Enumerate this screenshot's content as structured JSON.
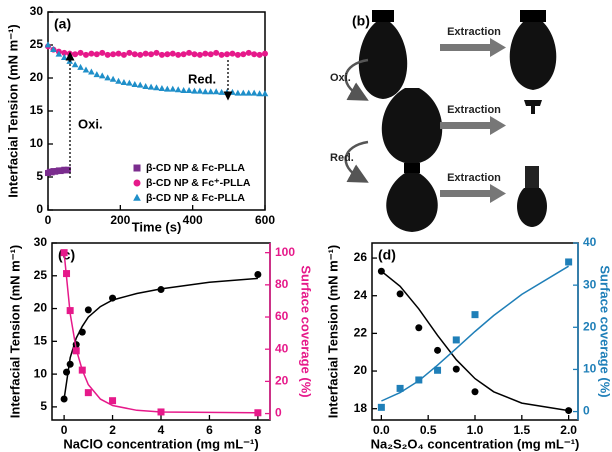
{
  "chart_data": [
    {
      "type": "scatter",
      "panel_label": "(a)",
      "x_label": "Time (s)",
      "y_label": "Interfacial Tension (mN m⁻¹)",
      "xlim": [
        0,
        600
      ],
      "ylim": [
        0,
        30
      ],
      "xticks": [
        0,
        200,
        400,
        600
      ],
      "yticks": [
        0,
        5,
        10,
        15,
        20,
        25,
        30
      ],
      "annotations": [
        "Oxi.",
        "Red."
      ],
      "legend": "lower right",
      "series": [
        {
          "name": "β-CD NP & Fc-PLLA",
          "color": "#7b2d8e",
          "marker": "square",
          "x": [
            0,
            5,
            10,
            15,
            20,
            25,
            30,
            35,
            40,
            45,
            50,
            55
          ],
          "values": [
            5.6,
            5.8,
            5.7,
            5.9,
            5.8,
            5.9,
            6.0,
            5.9,
            6.0,
            6.1,
            6.0,
            6.1
          ]
        },
        {
          "name": "β-CD NP & Fc⁺-PLLA",
          "color": "#e6198a",
          "marker": "circle",
          "x": [
            0,
            15,
            30,
            45,
            60,
            75,
            90,
            105,
            120,
            135,
            150,
            165,
            180,
            195,
            210,
            225,
            240,
            255,
            270,
            285,
            300,
            315,
            330,
            345,
            360,
            375,
            390,
            405,
            420,
            435,
            450,
            465,
            480,
            495,
            510,
            525,
            540,
            555,
            570,
            585,
            600
          ],
          "values": [
            24.8,
            24.3,
            24.0,
            23.8,
            23.7,
            23.6,
            23.8,
            23.5,
            23.7,
            23.6,
            23.8,
            23.5,
            23.6,
            23.7,
            23.5,
            23.8,
            23.6,
            23.5,
            23.7,
            23.6,
            23.8,
            23.5,
            23.6,
            23.7,
            23.5,
            23.6,
            23.8,
            23.6,
            23.5,
            23.7,
            23.6,
            23.8,
            23.5,
            23.6,
            23.7,
            23.5,
            23.6,
            23.8,
            23.6,
            23.5,
            23.7
          ]
        },
        {
          "name": "β-CD NP & Fc-PLLA",
          "color": "#1f8fc9",
          "marker": "triangle",
          "x": [
            0,
            15,
            30,
            45,
            60,
            75,
            90,
            105,
            120,
            135,
            150,
            165,
            180,
            195,
            210,
            225,
            240,
            255,
            270,
            285,
            300,
            315,
            330,
            345,
            360,
            375,
            390,
            405,
            420,
            435,
            450,
            465,
            480,
            495,
            510,
            525,
            540,
            555,
            570,
            585,
            600
          ],
          "values": [
            25.0,
            24.3,
            23.6,
            23.1,
            22.5,
            22.0,
            21.6,
            21.2,
            20.9,
            20.5,
            20.3,
            20.0,
            19.8,
            19.5,
            19.3,
            19.2,
            19.0,
            18.9,
            18.7,
            18.6,
            18.5,
            18.4,
            18.3,
            18.3,
            18.2,
            18.1,
            18.1,
            18.0,
            18.0,
            17.9,
            17.9,
            17.9,
            17.8,
            17.8,
            17.8,
            17.7,
            17.7,
            17.7,
            17.7,
            17.6,
            17.6
          ]
        }
      ]
    },
    {
      "type": "scatter",
      "panel_label": "(c)",
      "x_label": "NaClO concentration (mg mL⁻¹)",
      "y_label": "Interfacial Tension (mN m⁻¹)",
      "y2_label": "Surface coverage (%)",
      "y2_color": "#e6198a",
      "xlim": [
        -0.5,
        8.5
      ],
      "ylim": [
        3,
        30
      ],
      "y2lim": [
        -4,
        106
      ],
      "xticks": [
        0,
        2,
        4,
        6,
        8
      ],
      "yticks": [
        5,
        10,
        15,
        20,
        25,
        30
      ],
      "y2ticks": [
        0,
        20,
        40,
        60,
        80,
        100
      ],
      "series": [
        {
          "color": "#000000",
          "marker": "circle",
          "x": [
            0,
            0.1,
            0.25,
            0.5,
            0.75,
            1,
            2,
            4,
            8
          ],
          "values": [
            6.2,
            10.3,
            11.5,
            14.5,
            16.4,
            19.8,
            21.6,
            22.9,
            25.2
          ]
        },
        {
          "color": "#000000",
          "marker": "line",
          "x": [
            0,
            0.25,
            0.5,
            0.75,
            1,
            1.5,
            2,
            3,
            4,
            6,
            8
          ],
          "values": [
            6.2,
            12.5,
            15.5,
            17.3,
            18.7,
            20.3,
            21.3,
            22.3,
            23.0,
            24.0,
            24.6
          ]
        },
        {
          "color": "#e6198a",
          "marker": "square",
          "axis": "y2",
          "x": [
            0,
            0.1,
            0.25,
            0.5,
            0.75,
            1,
            2,
            4,
            8
          ],
          "values": [
            100,
            87,
            64,
            39,
            27,
            13,
            8,
            1,
            0.5
          ]
        },
        {
          "color": "#e6198a",
          "marker": "line",
          "axis": "y2",
          "x": [
            0,
            0.25,
            0.5,
            0.75,
            1,
            1.5,
            2,
            3,
            4,
            8
          ],
          "values": [
            100,
            62,
            40,
            27,
            18,
            9,
            5,
            2,
            1,
            0.5
          ]
        }
      ]
    },
    {
      "type": "scatter",
      "panel_label": "(d)",
      "x_label": "Na₂S₂O₄ concentration (mg mL⁻¹)",
      "y_label": "Interfacial Tension (mN m⁻¹)",
      "y2_label": "Surface coverage (%)",
      "y2_color": "#1f7fb8",
      "xlim": [
        -0.1,
        2.1
      ],
      "ylim": [
        17.4,
        26.8
      ],
      "y2lim": [
        -2,
        40
      ],
      "xticks": [
        {
          "value": 0,
          "label": "0.0"
        },
        0.5,
        {
          "value": 1,
          "label": "1.0"
        },
        1.5,
        {
          "value": 2,
          "label": "2.0"
        }
      ],
      "yticks": [
        18,
        20,
        22,
        24,
        26
      ],
      "y2ticks": [
        0,
        10,
        20,
        30,
        40
      ],
      "series": [
        {
          "color": "#000000",
          "marker": "circle",
          "x": [
            0,
            0.2,
            0.4,
            0.6,
            0.8,
            1.0,
            2.0
          ],
          "values": [
            25.3,
            24.1,
            22.3,
            21.1,
            20.1,
            18.9,
            17.9
          ]
        },
        {
          "color": "#000000",
          "marker": "line",
          "x": [
            0,
            0.2,
            0.4,
            0.6,
            0.8,
            1.0,
            1.2,
            1.5,
            2.0
          ],
          "values": [
            25.3,
            24.5,
            23.3,
            21.9,
            20.6,
            19.6,
            18.9,
            18.3,
            17.9
          ]
        },
        {
          "color": "#1f7fb8",
          "marker": "square",
          "axis": "y2",
          "x": [
            0,
            0.2,
            0.4,
            0.6,
            0.8,
            1.0,
            2.0
          ],
          "values": [
            1,
            5.5,
            7.5,
            9.8,
            17,
            23,
            35.5
          ]
        },
        {
          "color": "#1f7fb8",
          "marker": "line",
          "axis": "y2",
          "x": [
            0,
            0.2,
            0.4,
            0.6,
            0.8,
            1.0,
            1.2,
            1.5,
            2.0
          ],
          "values": [
            2.5,
            4.5,
            7.3,
            11,
            15,
            19,
            22.8,
            27.8,
            34.5
          ]
        }
      ]
    }
  ],
  "diagram": {
    "panel_label": "(b)",
    "extraction_labels": [
      "Extraction",
      "Extraction",
      "Extraction"
    ],
    "transition_labels": [
      "Oxi.",
      "Red."
    ]
  }
}
